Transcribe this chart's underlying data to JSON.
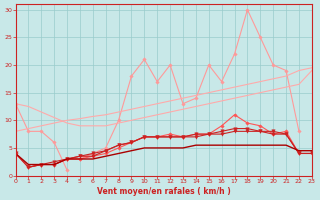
{
  "x": [
    0,
    1,
    2,
    3,
    4,
    5,
    6,
    7,
    8,
    9,
    10,
    11,
    12,
    13,
    14,
    15,
    16,
    17,
    18,
    19,
    20,
    21,
    22,
    23
  ],
  "series": [
    {
      "color": "#FF9999",
      "linewidth": 0.8,
      "marker": "D",
      "markersize": 1.8,
      "y": [
        13,
        8,
        8,
        6,
        1,
        null,
        null,
        null,
        null,
        null,
        null,
        null,
        null,
        null,
        null,
        null,
        null,
        null,
        null,
        null,
        null,
        null,
        null,
        null
      ]
    },
    {
      "color": "#FF9999",
      "linewidth": 0.8,
      "marker": "D",
      "markersize": 1.8,
      "y": [
        null,
        null,
        null,
        null,
        3,
        3,
        4,
        5,
        10,
        18,
        21,
        17,
        20,
        13,
        14,
        20,
        17,
        22,
        30,
        25,
        20,
        19,
        8,
        null
      ]
    },
    {
      "color": "#FFAAAA",
      "linewidth": 0.8,
      "marker": null,
      "markersize": 0,
      "y": [
        8,
        8.5,
        9,
        9.5,
        10,
        10.3,
        10.7,
        11.0,
        11.5,
        12.0,
        12.5,
        13.0,
        13.5,
        14.0,
        14.5,
        15.0,
        15.5,
        16.0,
        16.5,
        17.0,
        17.5,
        18.0,
        19.0,
        19.5
      ]
    },
    {
      "color": "#FFAAAA",
      "linewidth": 0.8,
      "marker": null,
      "markersize": 0,
      "y": [
        13,
        12.5,
        11.5,
        10.5,
        9.5,
        9.0,
        9.0,
        9.0,
        9.5,
        10.0,
        10.5,
        11.0,
        11.5,
        12.0,
        12.5,
        13.0,
        13.5,
        14.0,
        14.5,
        15.0,
        15.5,
        16.0,
        16.5,
        19.0
      ]
    },
    {
      "color": "#FF5555",
      "linewidth": 0.8,
      "marker": "D",
      "markersize": 1.8,
      "y": [
        4,
        1.5,
        2,
        2,
        3,
        3,
        3.5,
        4,
        5,
        6,
        7,
        7,
        7.5,
        7,
        7.5,
        7.5,
        9,
        11,
        9.5,
        9,
        7.5,
        8,
        4,
        4
      ]
    },
    {
      "color": "#CC2222",
      "linewidth": 0.8,
      "marker": "v",
      "markersize": 2.5,
      "y": [
        4,
        1.5,
        2,
        2.5,
        3,
        3.5,
        4,
        4.5,
        5.5,
        6,
        7,
        7,
        7,
        7,
        7.5,
        7.5,
        8,
        8.5,
        8.5,
        8,
        8,
        7.5,
        4,
        4
      ]
    },
    {
      "color": "#CC2222",
      "linewidth": 0.8,
      "marker": "v",
      "markersize": 2.5,
      "y": [
        null,
        1.5,
        2,
        2,
        3,
        3.5,
        3.5,
        4.5,
        5.5,
        6,
        7,
        7,
        7,
        7,
        7,
        7.5,
        7.5,
        8,
        8,
        8,
        7.5,
        7.5,
        4,
        4
      ]
    },
    {
      "color": "#AA0000",
      "linewidth": 1.0,
      "marker": null,
      "markersize": 0,
      "y": [
        4,
        2,
        2,
        2,
        3,
        3,
        3,
        3.5,
        4,
        4.5,
        5,
        5,
        5,
        5,
        5.5,
        5.5,
        5.5,
        5.5,
        5.5,
        5.5,
        5.5,
        5.5,
        4.5,
        4.5
      ]
    }
  ],
  "xlim": [
    0,
    23
  ],
  "ylim": [
    0,
    31
  ],
  "yticks": [
    0,
    5,
    10,
    15,
    20,
    25,
    30
  ],
  "xticks": [
    0,
    1,
    2,
    3,
    4,
    5,
    6,
    7,
    8,
    9,
    10,
    11,
    12,
    13,
    14,
    15,
    16,
    17,
    18,
    19,
    20,
    21,
    22,
    23
  ],
  "xlabel": "Vent moyen/en rafales ( km/h )",
  "background_color": "#C8E8E8",
  "grid_color": "#99CCCC",
  "axis_color": "#CC2222",
  "label_color": "#CC2222"
}
